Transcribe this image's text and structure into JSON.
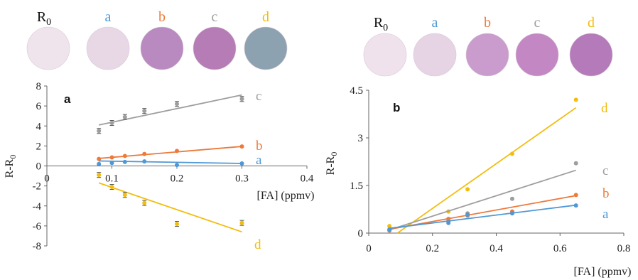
{
  "colors": {
    "a": "#4f98d6",
    "b": "#ee7a3a",
    "c": "#9e9e9e",
    "d": "#f2bd0d"
  },
  "spot_labels": {
    "r0": "R",
    "r0_sub": "0",
    "a": "a",
    "b": "b",
    "c": "c",
    "d": "d"
  },
  "spot_colors": {
    "left": [
      "#efe4ec",
      "#e8d7e5",
      "#b98ac0",
      "#b67cb5",
      "#8da2b0"
    ],
    "right": [
      "#efe2ec",
      "#e6d4e5",
      "#c99ccd",
      "#c388c3",
      "#b57ab9"
    ]
  },
  "chart_data": [
    {
      "type": "scatter",
      "panel_label": "a",
      "xlabel": "[FA]  (ppmv)",
      "ylabel": "R-R",
      "ylabel_sub": "0",
      "xlim": [
        0,
        0.4
      ],
      "ylim": [
        -8,
        8
      ],
      "xticks": [
        "0",
        "0.1",
        "0.2",
        "0.3",
        "0.4"
      ],
      "yticks": [
        "-8",
        "-6",
        "-4",
        "-2",
        "0",
        "2",
        "4",
        "6",
        "8"
      ],
      "x": [
        0.08,
        0.1,
        0.12,
        0.15,
        0.2,
        0.3
      ],
      "series": [
        {
          "key": "c",
          "label": "c",
          "values": [
            3.5,
            4.3,
            4.9,
            5.5,
            6.2,
            6.7
          ],
          "err": 0.25,
          "fit": [
            4.1,
            7.1
          ]
        },
        {
          "key": "b",
          "label": "b",
          "values": [
            0.7,
            0.85,
            1.0,
            1.2,
            1.5,
            1.95
          ],
          "fit": [
            0.75,
            1.95
          ]
        },
        {
          "key": "a",
          "label": "a",
          "values": [
            0.2,
            0.3,
            0.4,
            0.45,
            0.1,
            0.25
          ],
          "fit": [
            0.5,
            0.25
          ]
        },
        {
          "key": "d",
          "label": "d",
          "values": [
            -0.9,
            -2.1,
            -2.9,
            -3.7,
            -5.8,
            -5.7
          ],
          "err": 0.25,
          "fit": [
            -1.7,
            -6.6
          ]
        }
      ]
    },
    {
      "type": "scatter",
      "panel_label": "b",
      "xlabel": "[FA]  (ppmv)",
      "ylabel": "R-R",
      "ylabel_sub": "0",
      "xlim": [
        0,
        0.8
      ],
      "ylim": [
        0,
        4.5
      ],
      "xticks": [
        "0",
        "0.2",
        "0.4",
        "0.6",
        "0.8"
      ],
      "yticks": [
        "0",
        "1.5",
        "3",
        "4.5"
      ],
      "x": [
        0.065,
        0.25,
        0.31,
        0.45,
        0.65
      ],
      "series": [
        {
          "key": "d",
          "label": "d",
          "values": [
            0.22,
            0.68,
            1.38,
            2.5,
            4.2
          ],
          "fit_x": [
            0.09,
            0.65
          ],
          "fit": [
            0.0,
            3.95
          ]
        },
        {
          "key": "c",
          "label": "c",
          "values": [
            0.12,
            0.45,
            0.62,
            1.08,
            2.2
          ],
          "fit_x": [
            0.065,
            0.65
          ],
          "fit": [
            0.1,
            1.98
          ]
        },
        {
          "key": "b",
          "label": "b",
          "values": [
            0.08,
            0.38,
            0.55,
            0.68,
            1.2
          ],
          "fit_x": [
            0.065,
            0.65
          ],
          "fit": [
            0.12,
            1.18
          ]
        },
        {
          "key": "a",
          "label": "a",
          "values": [
            0.1,
            0.32,
            0.58,
            0.62,
            0.87
          ],
          "fit_x": [
            0.065,
            0.65
          ],
          "fit": [
            0.15,
            0.88
          ]
        }
      ]
    }
  ]
}
